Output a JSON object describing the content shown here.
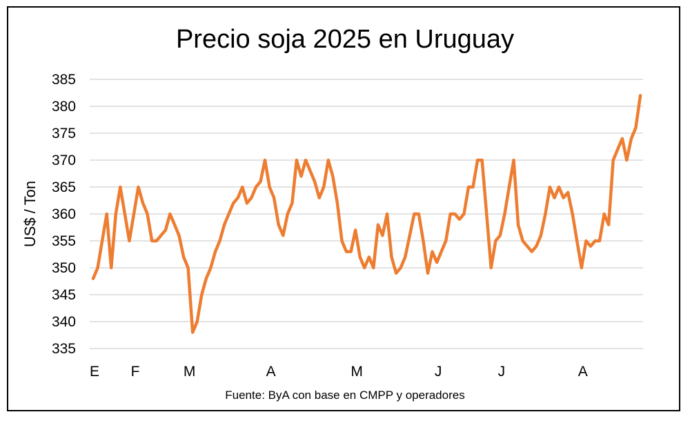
{
  "chart_data": {
    "type": "line",
    "title": "Precio soja 2025 en Uruguay",
    "ylabel": "US$ / Ton",
    "xlabel": "",
    "source": "Fuente: ByA con base en CMPP y operadores",
    "ylim": [
      335,
      385
    ],
    "yticks": [
      335,
      340,
      345,
      350,
      355,
      360,
      365,
      370,
      375,
      380,
      385
    ],
    "grid": true,
    "color": "#ED7D31",
    "xtick_labels": [
      {
        "label": "E",
        "index": 0
      },
      {
        "label": "F",
        "index": 9
      },
      {
        "label": "M",
        "index": 21
      },
      {
        "label": "A",
        "index": 39
      },
      {
        "label": "M",
        "index": 58
      },
      {
        "label": "J",
        "index": 76
      },
      {
        "label": "J",
        "index": 90
      },
      {
        "label": "A",
        "index": 108
      }
    ],
    "series": [
      {
        "values": [
          348,
          350,
          355,
          360,
          350,
          360,
          365,
          360,
          355,
          360,
          365,
          362,
          360,
          355,
          355,
          356,
          357,
          360,
          358,
          356,
          352,
          350,
          338,
          340,
          345,
          348,
          350,
          353,
          355,
          358,
          360,
          362,
          363,
          365,
          362,
          363,
          365,
          366,
          370,
          365,
          363,
          358,
          356,
          360,
          362,
          370,
          367,
          370,
          368,
          366,
          363,
          365,
          370,
          367,
          362,
          355,
          353,
          353,
          357,
          352,
          350,
          352,
          350,
          358,
          356,
          360,
          352,
          349,
          350,
          352,
          356,
          360,
          360,
          355,
          349,
          353,
          351,
          353,
          355,
          360,
          360,
          359,
          360,
          365,
          365,
          370,
          370,
          360,
          350,
          355,
          356,
          360,
          365,
          370,
          358,
          355,
          354,
          353,
          354,
          356,
          360,
          365,
          363,
          365,
          363,
          364,
          360,
          355,
          350,
          355,
          354,
          355,
          355,
          360,
          358,
          370,
          372,
          374,
          370,
          374,
          376,
          382
        ]
      }
    ]
  }
}
